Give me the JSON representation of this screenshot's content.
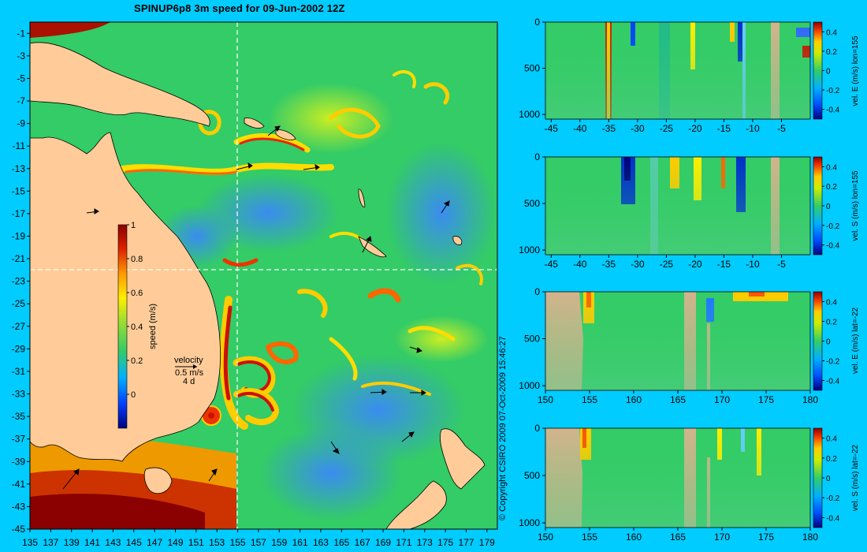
{
  "title": "SPINUP6p8 3m speed for 09-Jun-2002 12Z",
  "copyright": "© Copyright CSIRO 2009   07-Oct-2009 15:46:27",
  "map": {
    "lon_ticks": [
      "135",
      "137",
      "139",
      "141",
      "143",
      "145",
      "147",
      "149",
      "151",
      "153",
      "155",
      "157",
      "159",
      "161",
      "163",
      "165",
      "167",
      "169",
      "171",
      "173",
      "175",
      "177",
      "179"
    ],
    "lat_ticks": [
      "-1",
      "-3",
      "-5",
      "-7",
      "-9",
      "-11",
      "-13",
      "-15",
      "-17",
      "-19",
      "-21",
      "-23",
      "-25",
      "-27",
      "-29",
      "-31",
      "-33",
      "-35",
      "-37",
      "-39",
      "-41",
      "-43",
      "-45"
    ],
    "colorbar_label": "speed (m/s)",
    "colorbar_ticks": [
      "1",
      "0.8",
      "0.6",
      "0.4",
      "0.2",
      "0"
    ],
    "velocity_label": "velocity",
    "velocity_scale": "0.5 m/s",
    "velocity_time": "4 d",
    "section_lon": 155,
    "section_lat": -22
  },
  "colors": {
    "background": "#00ccff",
    "land": "#ffcc99",
    "section_land": "#d2b48c",
    "ocean_mid": "#33cc66"
  },
  "chart_data": [
    {
      "type": "heatmap",
      "ylabel": "vel. E (m/s) lon=155",
      "x_ticks": [
        "-45",
        "-40",
        "-35",
        "-30",
        "-25",
        "-20",
        "-15",
        "-10",
        "-5"
      ],
      "xlim": [
        -46,
        0
      ],
      "y_ticks": [
        "0",
        "500",
        "1000"
      ],
      "ylim": [
        1050,
        0
      ],
      "colorbar_ticks": [
        "0.4",
        "0.2",
        "0",
        "-0.2",
        "-0.4"
      ]
    },
    {
      "type": "heatmap",
      "ylabel": "vel. S (m/s) lon=155",
      "x_ticks": [
        "-45",
        "-40",
        "-35",
        "-30",
        "-25",
        "-20",
        "-15",
        "-10",
        "-5"
      ],
      "xlim": [
        -46,
        0
      ],
      "y_ticks": [
        "0",
        "500",
        "1000"
      ],
      "ylim": [
        1050,
        0
      ],
      "colorbar_ticks": [
        "0.4",
        "0.2",
        "0",
        "-0.2",
        "-0.4"
      ]
    },
    {
      "type": "heatmap",
      "ylabel": "vel. E (m/s) lat=-22",
      "x_ticks": [
        "150",
        "155",
        "160",
        "165",
        "170",
        "175",
        "180"
      ],
      "xlim": [
        150,
        180
      ],
      "y_ticks": [
        "0",
        "500",
        "1000"
      ],
      "ylim": [
        1050,
        0
      ],
      "colorbar_ticks": [
        "0.4",
        "0.2",
        "0",
        "-0.2",
        "-0.4"
      ]
    },
    {
      "type": "heatmap",
      "ylabel": "vel. S (m/s) lat=-22",
      "x_ticks": [
        "150",
        "155",
        "160",
        "165",
        "170",
        "175",
        "180"
      ],
      "xlim": [
        150,
        180
      ],
      "y_ticks": [
        "0",
        "500",
        "1000"
      ],
      "ylim": [
        1050,
        0
      ],
      "colorbar_ticks": [
        "0.4",
        "0.2",
        "0",
        "-0.2",
        "-0.4"
      ]
    }
  ]
}
